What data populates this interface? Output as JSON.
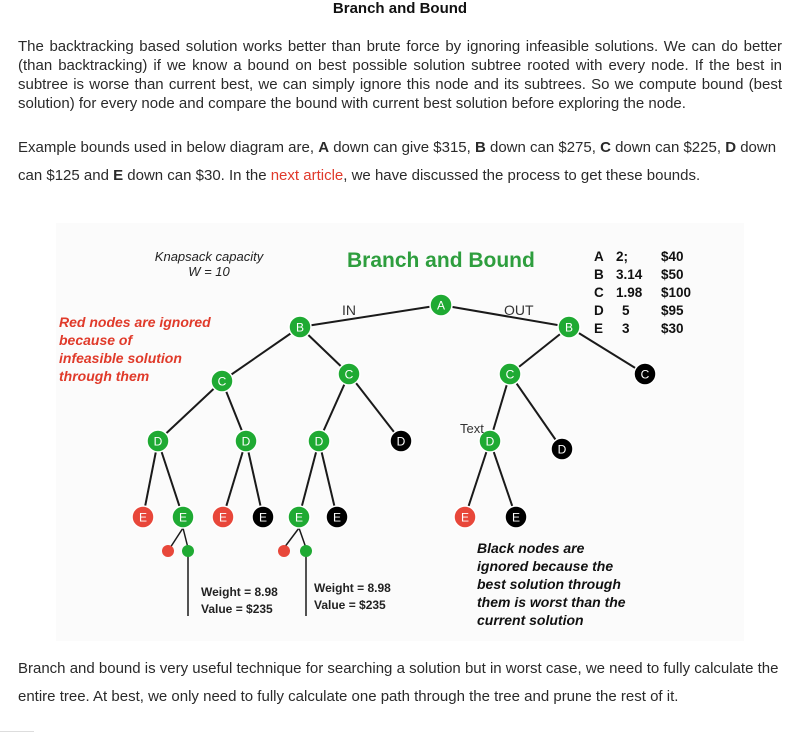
{
  "title": "Branch and Bound",
  "paragraph1": "The backtracking based solution works better than brute force by ignoring infeasible solutions. We can do better (than backtracking) if we know a bound on best possible solution subtree rooted with every node. If the best in subtree is worse than current best, we can simply ignore this node and its subtrees. So we compute bound (best solution) for every node and compare the bound with current best solution before exploring the node.",
  "paragraph2": {
    "p1": "Example bounds used in below diagram are, ",
    "A": "A",
    "p2": " down can give $315, ",
    "B": "B",
    "p3": " down can $275, ",
    "C": "C",
    "p4": " down can $225, ",
    "D": "D",
    "p5": " down can $125 and ",
    "E": "E",
    "p6": " down can $30. In the ",
    "link": "next article",
    "p7": ", we have discussed the process to get these bounds."
  },
  "diagram": {
    "capacity_line1": "Knapsack capacity",
    "capacity_line2": "W = 10",
    "title": "Branch and Bound",
    "in_label": "IN",
    "out_label": "OUT",
    "text_label": "Text",
    "red_note": [
      "Red nodes are ignored",
      "because of",
      "infeasible solution",
      "through them"
    ],
    "black_note": [
      "Black nodes are",
      "ignored because the",
      "best solution through",
      "them is worst than the",
      "current solution"
    ],
    "weight_box1": [
      "Weight = 8.98",
      "Value = $235"
    ],
    "weight_box2": [
      "Weight = 8.98",
      "Value = $235"
    ],
    "legend": [
      {
        "item": "A",
        "weight": "2;",
        "value": "$40"
      },
      {
        "item": "B",
        "weight": "3.14",
        "value": "$50"
      },
      {
        "item": "C",
        "weight": "1.98",
        "value": "$100"
      },
      {
        "item": "D",
        "weight": "5",
        "value": "$95"
      },
      {
        "item": "E",
        "weight": "3",
        "value": "$30"
      }
    ],
    "nodes": {
      "A": "A",
      "B": "B",
      "C": "C",
      "D": "D",
      "E": "E"
    },
    "colors": {
      "green": "#1faa33",
      "red": "#e8473a",
      "black": "#000000"
    }
  },
  "paragraph3": "Branch and bound is very useful technique for searching a solution but in worst case, we need to fully calculate the entire tree. At best, we only need to fully calculate one path through the tree and prune the rest of it."
}
